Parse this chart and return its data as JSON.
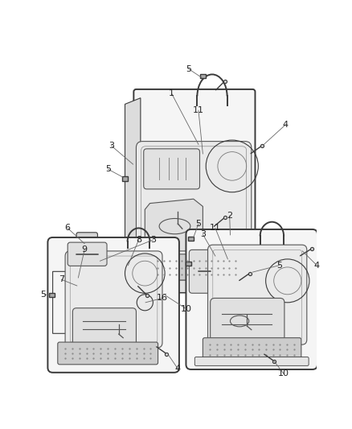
{
  "bg_color": "#ffffff",
  "panel_fill": "#f5f5f5",
  "panel_edge": "#3a3a3a",
  "inner_fill": "#eaeaea",
  "inner_edge": "#555555",
  "grille_fill": "#cccccc",
  "screw_color": "#3a3a3a",
  "label_color": "#222222",
  "line_color": "#3a3a3a",
  "lw_main": 1.4,
  "lw_thin": 0.8,
  "lw_label": 0.6,
  "fig_width": 4.38,
  "fig_height": 5.33,
  "dpi": 100
}
